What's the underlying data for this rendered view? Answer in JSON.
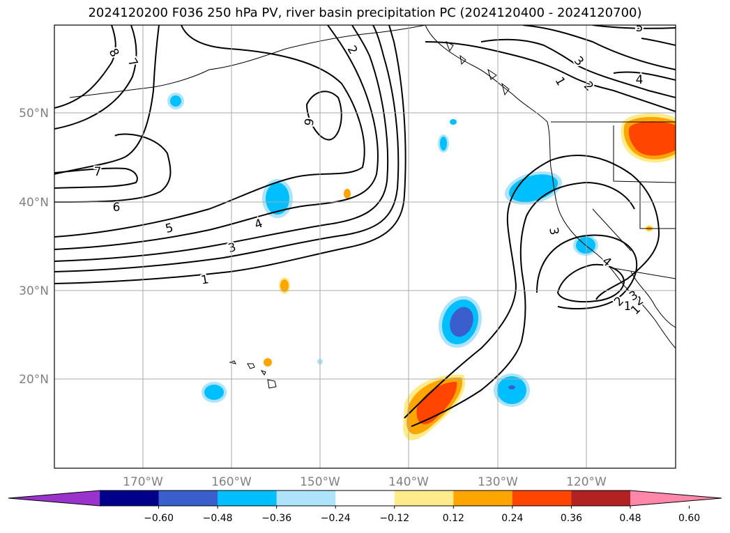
{
  "title": "2024120200 F036 250 hPa PV, river basin precipitation PC (2024120400 - 2024120700)",
  "map": {
    "lon_labels": [
      "170°W",
      "160°W",
      "150°W",
      "140°W",
      "130°W",
      "120°W"
    ],
    "lat_labels": [
      "50°N",
      "40°N",
      "30°N",
      "20°N"
    ],
    "contour_labels": [
      "8",
      "7",
      "7",
      "6",
      "6",
      "5",
      "4",
      "3",
      "2",
      "1",
      "1",
      "2",
      "3",
      "4",
      "3",
      "4",
      "1",
      "2",
      "1",
      "2",
      "3",
      "5"
    ]
  },
  "colorbar": {
    "ticks": [
      "−0.60",
      "−0.48",
      "−0.36",
      "−0.24",
      "−0.12",
      "0.12",
      "0.24",
      "0.36",
      "0.48",
      "0.60"
    ],
    "colors": [
      "#9933cc",
      "#00008b",
      "#3a5fcd",
      "#00bfff",
      "#ade4fb",
      "#ffffff",
      "#ffeb8a",
      "#ffa500",
      "#ff4500",
      "#b22222",
      "#ff88aa"
    ]
  }
}
